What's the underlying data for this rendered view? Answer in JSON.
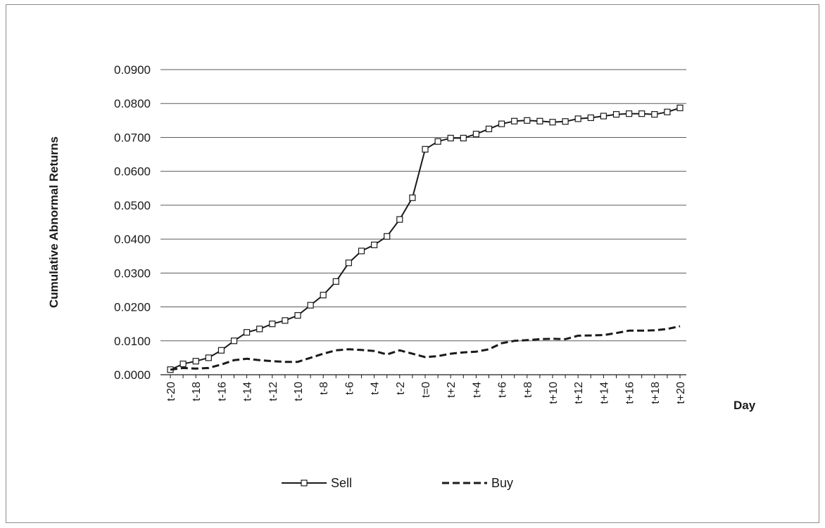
{
  "chart_data": {
    "type": "line",
    "xlabel": "Day",
    "ylabel": "Cumulative Abnormal Returns",
    "ylim": [
      0,
      0.09
    ],
    "yticks": [
      "0.0000",
      "0.0100",
      "0.0200",
      "0.0300",
      "0.0400",
      "0.0500",
      "0.0600",
      "0.0700",
      "0.0800",
      "0.0900"
    ],
    "ytick_values": [
      0,
      0.01,
      0.02,
      0.03,
      0.04,
      0.05,
      0.06,
      0.07,
      0.08,
      0.09
    ],
    "grid": true,
    "legend_position": "bottom",
    "categories": [
      "t-20",
      "t-19",
      "t-18",
      "t-17",
      "t-16",
      "t-15",
      "t-14",
      "t-13",
      "t-12",
      "t-11",
      "t-10",
      "t-9",
      "t-8",
      "t-7",
      "t-6",
      "t-5",
      "t-4",
      "t-3",
      "t-2",
      "t-1",
      "t=0",
      "t+1",
      "t+2",
      "t+3",
      "t+4",
      "t+5",
      "t+6",
      "t+7",
      "t+8",
      "t+9",
      "t+10",
      "t+11",
      "t+12",
      "t+13",
      "t+14",
      "t+15",
      "t+16",
      "t+17",
      "t+18",
      "t+19",
      "t+20"
    ],
    "tick_labels": [
      "t-20",
      "t-18",
      "t-16",
      "t-14",
      "t-12",
      "t-10",
      "t-8",
      "t-6",
      "t-4",
      "t-2",
      "t=0",
      "t+2",
      "t+4",
      "t+6",
      "t+8",
      "t+10",
      "t+12",
      "t+14",
      "t+16",
      "t+18",
      "t+20"
    ],
    "series": [
      {
        "name": "Sell",
        "style": "solid-square-markers",
        "color": "#1a1a1a",
        "values": [
          0.0015,
          0.0032,
          0.004,
          0.005,
          0.0072,
          0.01,
          0.0125,
          0.0135,
          0.015,
          0.016,
          0.0175,
          0.0205,
          0.0235,
          0.0275,
          0.033,
          0.0365,
          0.0383,
          0.0408,
          0.0458,
          0.0522,
          0.0665,
          0.0688,
          0.0698,
          0.0698,
          0.071,
          0.0725,
          0.074,
          0.0748,
          0.075,
          0.0748,
          0.0745,
          0.0747,
          0.0755,
          0.0758,
          0.0763,
          0.0768,
          0.077,
          0.077,
          0.0768,
          0.0775,
          0.0787
        ]
      },
      {
        "name": "Buy",
        "style": "dashed",
        "color": "#1a1a1a",
        "values": [
          0.0015,
          0.002,
          0.0018,
          0.002,
          0.003,
          0.0043,
          0.0047,
          0.0043,
          0.004,
          0.0038,
          0.0038,
          0.005,
          0.0062,
          0.0072,
          0.0075,
          0.0073,
          0.007,
          0.006,
          0.0072,
          0.0062,
          0.0052,
          0.0055,
          0.0062,
          0.0066,
          0.0068,
          0.0075,
          0.0093,
          0.01,
          0.0102,
          0.0105,
          0.0106,
          0.0105,
          0.0115,
          0.0116,
          0.0117,
          0.0123,
          0.013,
          0.013,
          0.0131,
          0.0135,
          0.0143
        ]
      }
    ]
  }
}
